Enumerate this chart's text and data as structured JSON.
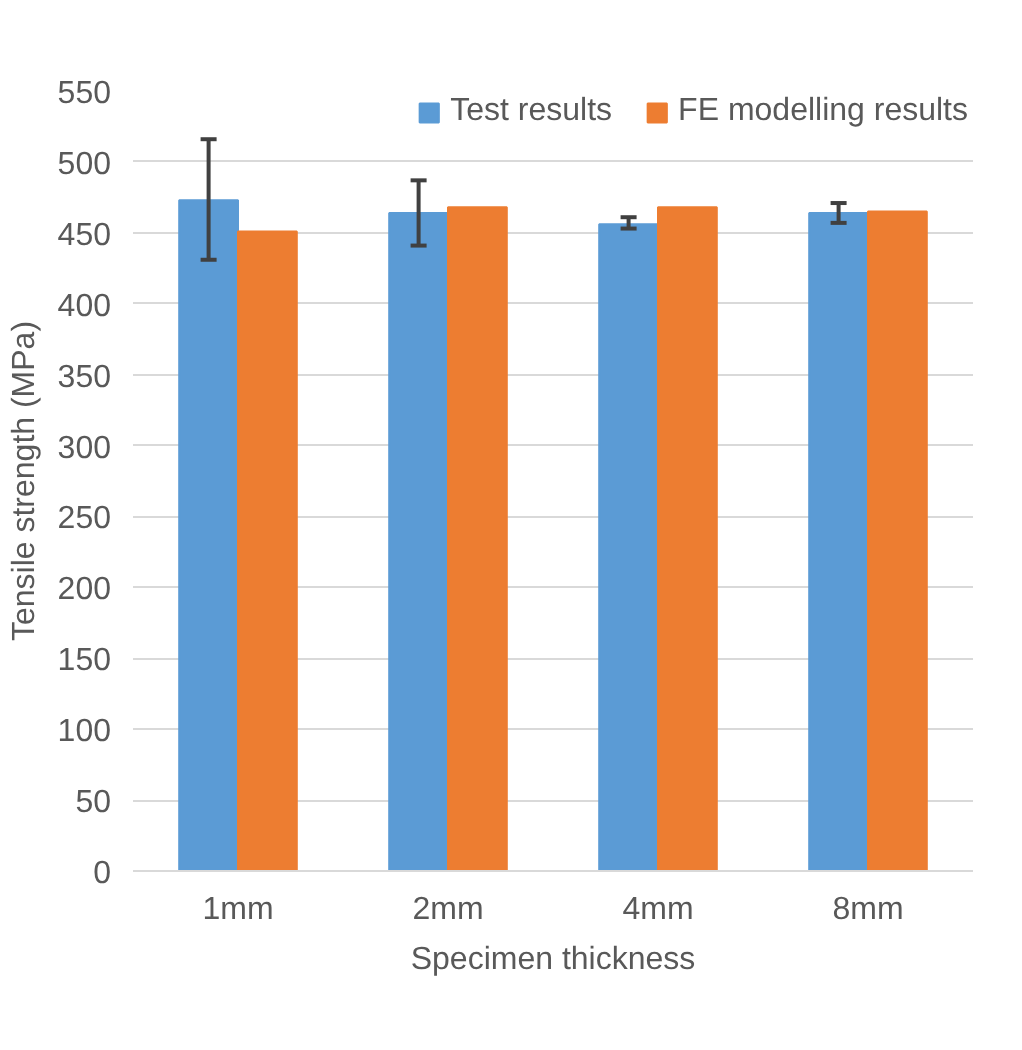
{
  "chart_data": {
    "type": "bar",
    "xlabel": "Specimen thickness",
    "ylabel": "Tensile strength (MPa)",
    "categories": [
      "1mm",
      "2mm",
      "4mm",
      "8mm"
    ],
    "series": [
      {
        "name": "Test results",
        "color": "#5b9bd5",
        "values": [
          473,
          464,
          456,
          464
        ],
        "errors": [
          [
            431,
            516
          ],
          [
            441,
            487
          ],
          [
            453,
            461
          ],
          [
            457,
            471
          ]
        ]
      },
      {
        "name": "FE modelling results",
        "color": "#ed7d31",
        "values": [
          451,
          468,
          468,
          465
        ]
      }
    ],
    "ylim": [
      0,
      550
    ],
    "yticks": [
      0,
      50,
      100,
      150,
      200,
      250,
      300,
      350,
      400,
      450,
      500,
      550
    ],
    "grid": "y",
    "legend": "top right"
  }
}
